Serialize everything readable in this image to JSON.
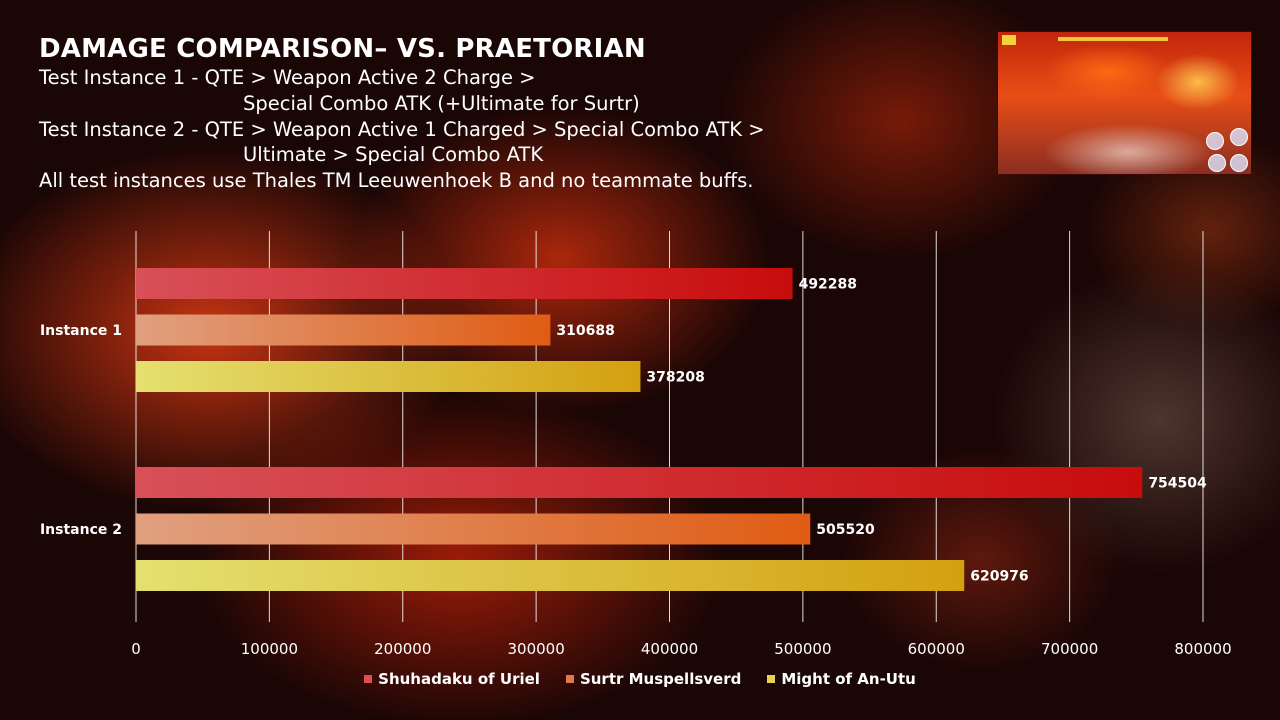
{
  "header": {
    "title": "DAMAGE COMPARISON– VS. PRAETORIAN",
    "lines": [
      "Test Instance 1 - QTE > Weapon Active 2 Charge >",
      "Special Combo ATK (+Ultimate for Surtr)",
      "Test Instance 2 - QTE > Weapon Active 1 Charged > Special Combo ATK >",
      "Ultimate > Special Combo ATK",
      "All test instances use Thales TM Leeuwenhoek B and no teammate buffs."
    ]
  },
  "colors": {
    "series_start": [
      "#d85058",
      "#e0a080",
      "#e4e070"
    ],
    "series_end": [
      "#c80c0c",
      "#e05c14",
      "#d4a010"
    ],
    "legend": [
      "#e05050",
      "#e07850",
      "#e8d050"
    ]
  },
  "chart_data": {
    "type": "bar",
    "orientation": "horizontal",
    "categories": [
      "Instance 1",
      "Instance 2"
    ],
    "series": [
      {
        "name": "Shuhadaku of Uriel",
        "values": [
          492288,
          754504
        ]
      },
      {
        "name": "Surtr Muspellsverd",
        "values": [
          310688,
          505520
        ]
      },
      {
        "name": "Might of An-Utu",
        "values": [
          378208,
          620976
        ]
      }
    ],
    "xlim": [
      0,
      800000
    ],
    "xticks": [
      0,
      100000,
      200000,
      300000,
      400000,
      500000,
      600000,
      700000,
      800000
    ],
    "grid": true,
    "legend_position": "bottom",
    "data_labels": true
  }
}
